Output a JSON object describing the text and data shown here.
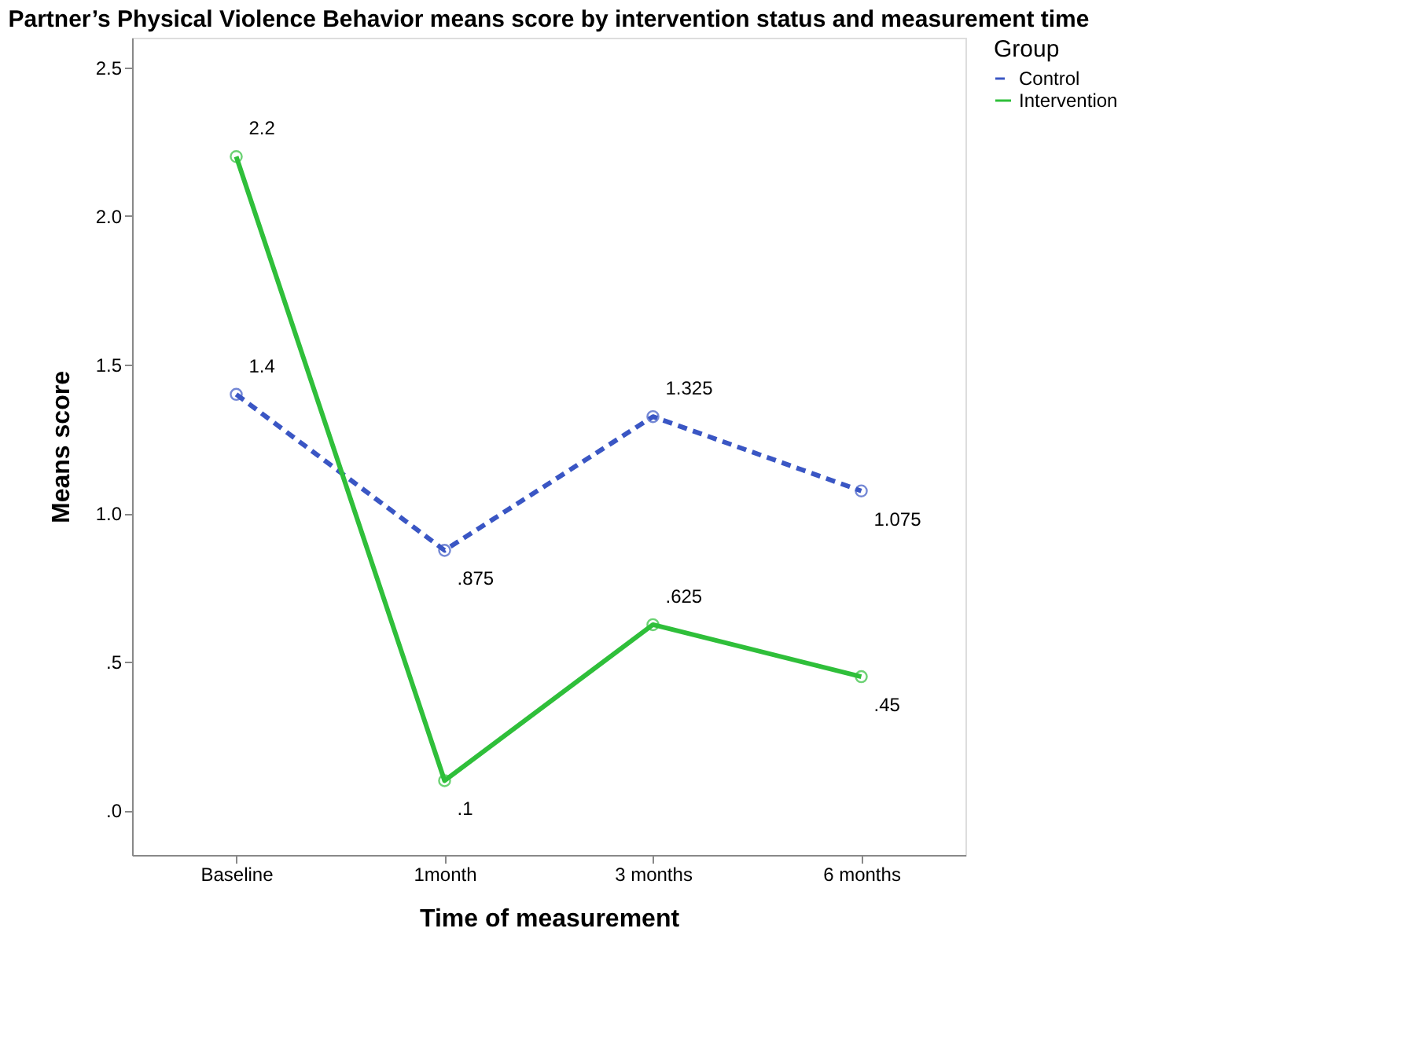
{
  "chart_data": {
    "type": "line",
    "title": "Partner’s Physical Violence Behavior means score by intervention status and measurement time",
    "xlabel": "Time of measurement",
    "ylabel": "Means score",
    "legend_title": "Group",
    "categories": [
      "Baseline",
      "1month",
      "3 months",
      "6 months"
    ],
    "series": [
      {
        "name": "Control",
        "color": "#3a56c4",
        "line_style": "dashed",
        "values": [
          1.4,
          0.875,
          1.325,
          1.075
        ],
        "value_labels": [
          "1.4",
          ".875",
          "1.325",
          "1.075"
        ]
      },
      {
        "name": "Intervention",
        "color": "#2fbf3a",
        "line_style": "solid",
        "values": [
          2.2,
          0.1,
          0.625,
          0.45
        ],
        "value_labels": [
          "2.2",
          ".1",
          ".625",
          ".45"
        ]
      }
    ],
    "ylim": [
      -0.15,
      2.6
    ],
    "yticks": [
      {
        "value": 0,
        "label": ".0"
      },
      {
        "value": 0.5,
        "label": ".5"
      },
      {
        "value": 1,
        "label": "1.0"
      },
      {
        "value": 1.5,
        "label": "1.5"
      },
      {
        "value": 2,
        "label": "2.0"
      },
      {
        "value": 2.5,
        "label": "2.5"
      }
    ],
    "marker": "circle",
    "grid": false,
    "legend": "top right"
  }
}
